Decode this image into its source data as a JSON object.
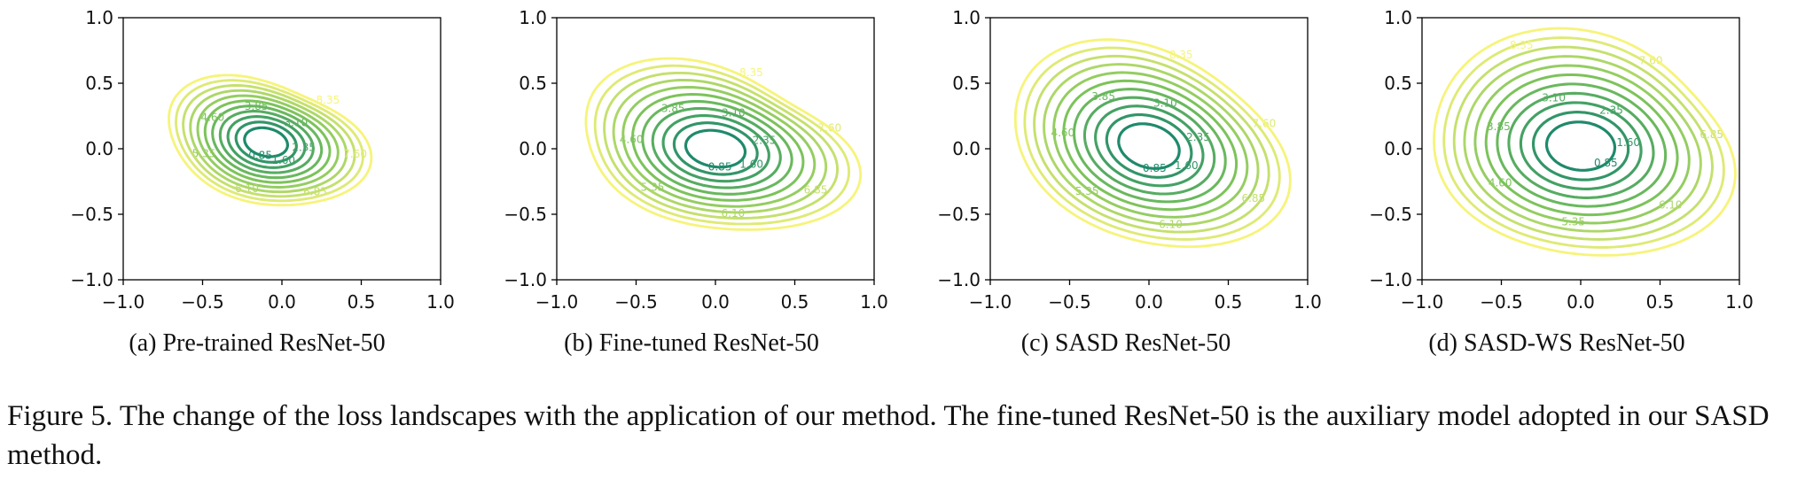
{
  "figure": {
    "label": "Figure 5.",
    "caption": "The change of the loss landscapes with the application of our method. The fine-tuned ResNet-50 is the auxiliary model adopted in our SASD method."
  },
  "colors": {
    "low": "#1f8a6b",
    "mid": "#7cc35a",
    "high": "#f6f47a",
    "axis": "#000000"
  },
  "chart_data": [
    {
      "type": "contour",
      "title": "(a) Pre-trained ResNet-50",
      "xlim": [
        -1.0,
        1.0
      ],
      "ylim": [
        -1.0,
        1.0
      ],
      "xticks": [
        "−1.0",
        "−0.5",
        "0.0",
        "0.5",
        "1.0"
      ],
      "yticks": [
        "1.0",
        "0.5",
        "0.0",
        "−0.5",
        "−1.0"
      ],
      "center": [
        -0.1,
        0.05
      ],
      "level_values": [
        0.85,
        1.6,
        2.35,
        3.1,
        3.85,
        4.6,
        5.35,
        6.1,
        6.85,
        7.6,
        8.35
      ],
      "contour_labels": [
        "0.85",
        "1.60",
        "2.35",
        "3.10",
        "3.85",
        "4.60",
        "5.35",
        "6.10",
        "6.85",
        "7.60",
        "8.35"
      ],
      "outer_extent": [
        0.62,
        0.48
      ]
    },
    {
      "type": "contour",
      "title": "(b) Fine-tuned ResNet-50",
      "xlim": [
        -1.0,
        1.0
      ],
      "ylim": [
        -1.0,
        1.0
      ],
      "xticks": [
        "−1.0",
        "−0.5",
        "0.0",
        "0.5",
        "1.0"
      ],
      "yticks": [
        "1.0",
        "0.5",
        "0.0",
        "−0.5",
        "−1.0"
      ],
      "center": [
        0.0,
        0.0
      ],
      "level_values": [
        0.85,
        1.6,
        2.35,
        3.1,
        3.85,
        4.6,
        5.35,
        6.1,
        6.85,
        7.6,
        8.35
      ],
      "contour_labels": [
        "0.85",
        "1.60",
        "2.35",
        "3.10",
        "3.85",
        "4.60",
        "5.35",
        "6.10",
        "6.85",
        "7.60",
        "8.35"
      ],
      "outer_extent": [
        0.85,
        0.62
      ]
    },
    {
      "type": "contour",
      "title": "(c) SASD ResNet-50",
      "xlim": [
        -1.0,
        1.0
      ],
      "ylim": [
        -1.0,
        1.0
      ],
      "xticks": [
        "−1.0",
        "−0.5",
        "0.0",
        "0.5",
        "1.0"
      ],
      "yticks": [
        "1.0",
        "0.5",
        "0.0",
        "−0.5",
        "−1.0"
      ],
      "center": [
        0.0,
        0.02
      ],
      "level_values": [
        0.85,
        1.6,
        2.35,
        3.1,
        3.85,
        4.6,
        5.35,
        6.1,
        6.85,
        7.6,
        8.35
      ],
      "contour_labels": [
        "0.85",
        "1.60",
        "2.35",
        "3.10",
        "3.85",
        "4.60",
        "5.35",
        "6.10",
        "6.85",
        "7.60",
        "8.35"
      ],
      "outer_extent": [
        0.9,
        0.72
      ]
    },
    {
      "type": "contour",
      "title": "(d) SASD-WS ResNet-50",
      "xlim": [
        -1.0,
        1.0
      ],
      "ylim": [
        -1.0,
        1.0
      ],
      "xticks": [
        "−1.0",
        "−0.5",
        "0.0",
        "0.5",
        "1.0"
      ],
      "yticks": [
        "1.0",
        "0.5",
        "0.0",
        "−0.5",
        "−1.0"
      ],
      "center": [
        0.0,
        0.02
      ],
      "level_values": [
        0.85,
        1.6,
        2.35,
        3.1,
        3.85,
        4.6,
        5.35,
        6.1,
        6.85,
        7.6,
        8.35
      ],
      "contour_labels": [
        "0.85",
        "1.60",
        "2.35",
        "3.10",
        "3.85",
        "4.60",
        "5.35",
        "6.10",
        "6.85",
        "7.60",
        "8.35"
      ],
      "outer_extent": [
        0.98,
        0.82
      ]
    }
  ]
}
